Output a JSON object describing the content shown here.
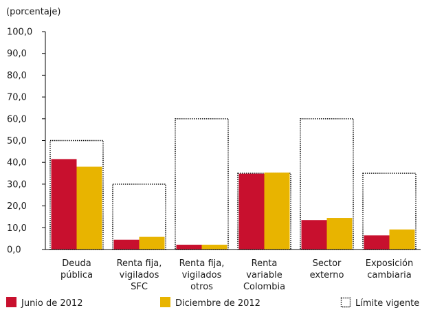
{
  "chart_data": {
    "type": "bar",
    "y_unit_label": "(porcentaje)",
    "categories": [
      [
        "Deuda",
        "pública"
      ],
      [
        "Renta fija,",
        "vigilados",
        "SFC"
      ],
      [
        "Renta fija,",
        "vigilados",
        "otros"
      ],
      [
        "Renta",
        "variable",
        "Colombia"
      ],
      [
        "Sector",
        "externo"
      ],
      [
        "Exposición",
        "cambiaria"
      ]
    ],
    "series": [
      {
        "name": "Junio de 2012",
        "color": "#c8102e",
        "values": [
          41.5,
          4.5,
          2.2,
          34.8,
          13.5,
          6.5
        ]
      },
      {
        "name": "Diciembre de 2012",
        "color": "#e8b400",
        "values": [
          38.0,
          5.8,
          2.2,
          35.3,
          14.5,
          9.2
        ]
      }
    ],
    "limit": {
      "name": "Límite vigente",
      "values": [
        50,
        30,
        60,
        35,
        60,
        35
      ]
    },
    "ylim": [
      0,
      100
    ],
    "yticks": [
      "0,0",
      "10,0",
      "20,0",
      "30,0",
      "40,0",
      "50,0",
      "60,0",
      "70,0",
      "80,0",
      "90,0",
      "100,0"
    ],
    "legend_position": "bottom"
  }
}
